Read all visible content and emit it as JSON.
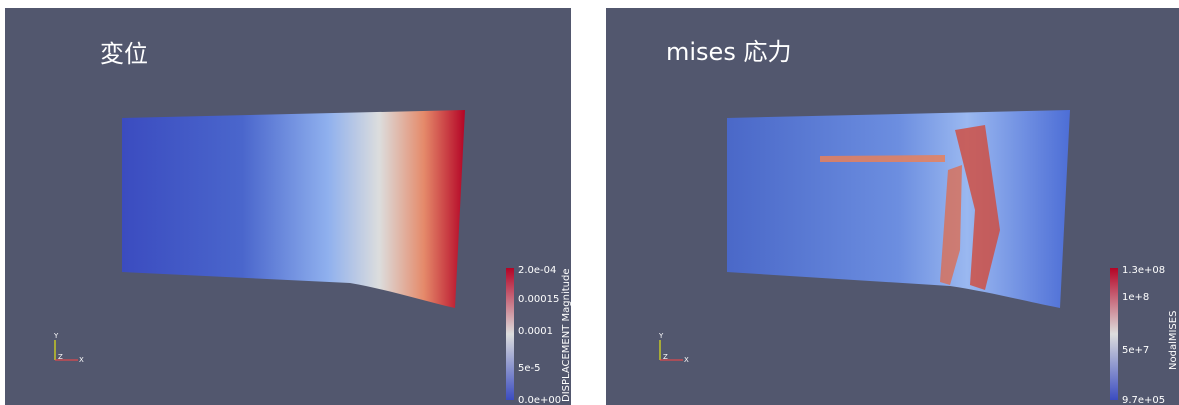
{
  "panels": [
    {
      "title": "変位",
      "colorbar": {
        "label": "DISPLACEMENT Magnitude",
        "ticks": [
          "2.0e-04",
          "0.00015",
          "0.0001",
          "5e-5",
          "0.0e+00"
        ]
      },
      "axes": {
        "y": "Y",
        "z": "Z",
        "x": "X"
      }
    },
    {
      "title": "mises 応力",
      "colorbar": {
        "label": "NodalMISES",
        "ticks": [
          "1.3e+08",
          "1e+8",
          "5e+7",
          "9.7e+05"
        ]
      },
      "axes": {
        "y": "Y",
        "z": "Z",
        "x": "X"
      }
    }
  ]
}
